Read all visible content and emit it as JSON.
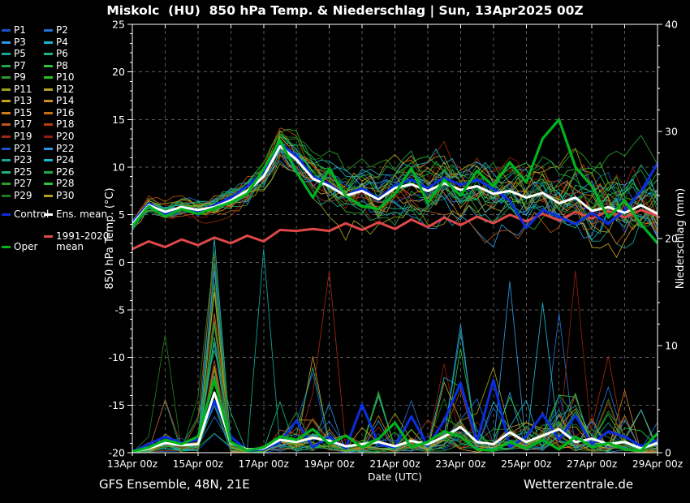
{
  "title": "Miskolc  (HU)  850 hPa Temp. & Niederschlag | Sun, 13Apr2025 00Z",
  "footer": {
    "left": "GFS Ensemble, 48N, 21E",
    "right": "Wetterzentrale.de"
  },
  "colors": {
    "background": "#000000",
    "grid": "#5a5a5a",
    "axis": "#ffffff"
  },
  "legend": {
    "members": [
      {
        "label": "P1",
        "color": "#1c50c8"
      },
      {
        "label": "P2",
        "color": "#2472d8"
      },
      {
        "label": "P3",
        "color": "#2e96e0"
      },
      {
        "label": "P4",
        "color": "#1cb4cc"
      },
      {
        "label": "P5",
        "color": "#14a898"
      },
      {
        "label": "P6",
        "color": "#1cb478"
      },
      {
        "label": "P7",
        "color": "#20a848"
      },
      {
        "label": "P8",
        "color": "#2cc23c"
      },
      {
        "label": "P9",
        "color": "#2a9e2a"
      },
      {
        "label": "P10",
        "color": "#22c822"
      },
      {
        "label": "P11",
        "color": "#a0a01e"
      },
      {
        "label": "P12",
        "color": "#b4a01e"
      },
      {
        "label": "P13",
        "color": "#c8a41e"
      },
      {
        "label": "P14",
        "color": "#cc9022"
      },
      {
        "label": "P15",
        "color": "#d07c1e"
      },
      {
        "label": "P16",
        "color": "#c86c14"
      },
      {
        "label": "P17",
        "color": "#bc5614"
      },
      {
        "label": "P18",
        "color": "#b04010"
      },
      {
        "label": "P19",
        "color": "#a02810"
      },
      {
        "label": "P20",
        "color": "#8f1e0c"
      },
      {
        "label": "P21",
        "color": "#1c50c8"
      },
      {
        "label": "P22",
        "color": "#2e96e0"
      },
      {
        "label": "P23",
        "color": "#14a898"
      },
      {
        "label": "P24",
        "color": "#1cb4cc"
      },
      {
        "label": "P25",
        "color": "#1cb478"
      },
      {
        "label": "P26",
        "color": "#20a848"
      },
      {
        "label": "P27",
        "color": "#2a9e2a"
      },
      {
        "label": "P28",
        "color": "#2cc23c"
      },
      {
        "label": "P29",
        "color": "#1e7d1e"
      },
      {
        "label": "P30",
        "color": "#b4a01e"
      }
    ],
    "control": {
      "label": "Control",
      "color": "#0a2ee0"
    },
    "ens_mean": {
      "label": "Ens. mean",
      "color": "#ffffff"
    },
    "clim_mean": {
      "label": "1991-2020\nmean",
      "color": "#e04848"
    },
    "oper": {
      "label": "Oper",
      "color": "#00b41e"
    }
  },
  "chart_data": {
    "type": "line",
    "title": "Miskolc  (HU)  850 hPa Temp. & Niederschlag | Sun, 13Apr2025 00Z",
    "xlabel": "Date (UTC)",
    "ylabel_left": "850 hPa Temp. (°C)",
    "ylabel_right": "Niederschlag (mm)",
    "x_tick_labels": [
      "13Apr 00z",
      "15Apr 00z",
      "17Apr 00z",
      "19Apr 00z",
      "21Apr 00z",
      "23Apr 00z",
      "25Apr 00z",
      "27Apr 00z",
      "29Apr 00z"
    ],
    "y_left_ticks": [
      25,
      20,
      15,
      10,
      5,
      0,
      -5,
      -10,
      -15,
      -20
    ],
    "y_right_ticks": [
      40,
      30,
      20,
      10,
      0
    ],
    "ylim_left": [
      -20,
      25
    ],
    "ylim_right": [
      0,
      40
    ],
    "grid": true,
    "legend_position": "left",
    "time_step_hours": 12,
    "n_points": 33,
    "series": {
      "ens_mean_temp": [
        4.0,
        6.0,
        5.3,
        5.8,
        5.5,
        5.8,
        6.5,
        7.5,
        9.0,
        12.2,
        10.8,
        8.8,
        8.0,
        7.0,
        7.5,
        6.6,
        7.8,
        8.2,
        7.5,
        8.3,
        7.6,
        8.0,
        7.2,
        7.5,
        6.8,
        7.3,
        6.2,
        6.8,
        5.4,
        5.8,
        5.2,
        6.0,
        5.1
      ],
      "control_temp": [
        4.2,
        6.2,
        5.1,
        5.7,
        5.3,
        6.0,
        6.8,
        8.0,
        9.5,
        12.5,
        11.2,
        9.0,
        8.2,
        7.0,
        7.8,
        6.7,
        8.1,
        8.7,
        7.8,
        8.9,
        8.1,
        8.7,
        7.7,
        6.5,
        3.6,
        5.5,
        4.8,
        4.0,
        5.2,
        4.0,
        5.5,
        7.5,
        10.4
      ],
      "oper_temp": [
        3.8,
        5.9,
        4.8,
        5.6,
        5.1,
        5.7,
        6.3,
        7.2,
        9.8,
        12.8,
        9.5,
        6.8,
        9.8,
        7.0,
        5.9,
        5.6,
        7.2,
        9.9,
        6.2,
        8.7,
        7.0,
        9.6,
        8.0,
        10.5,
        8.4,
        13.0,
        15.0,
        10.0,
        8.0,
        4.7,
        6.5,
        4.0,
        2.0
      ],
      "clim_mean_temp": [
        1.4,
        2.2,
        1.6,
        2.4,
        1.8,
        2.6,
        2.0,
        2.8,
        2.2,
        3.4,
        3.3,
        3.5,
        3.3,
        4.1,
        3.4,
        4.2,
        3.5,
        4.5,
        3.7,
        4.7,
        3.9,
        4.8,
        4.1,
        5.0,
        4.3,
        5.1,
        4.4,
        5.3,
        4.6,
        5.4,
        4.7,
        5.5,
        4.9
      ],
      "ens_mean_precip": [
        0.1,
        0.4,
        0.9,
        0.7,
        0.8,
        5.6,
        0.9,
        0.3,
        0.4,
        1.2,
        1.0,
        1.4,
        1.1,
        0.6,
        0.8,
        1.0,
        0.6,
        1.1,
        0.8,
        1.5,
        2.4,
        1.0,
        0.8,
        1.9,
        1.0,
        1.6,
        2.2,
        1.0,
        1.3,
        0.8,
        1.0,
        0.4,
        0.9
      ],
      "control_precip": [
        0.1,
        0.8,
        1.5,
        0.9,
        1.2,
        4.8,
        1.5,
        0.2,
        0.3,
        1.0,
        3.0,
        0.5,
        1.5,
        0.4,
        4.5,
        0.8,
        0.5,
        3.4,
        0.6,
        3.0,
        6.5,
        1.0,
        6.8,
        0.5,
        1.5,
        3.6,
        1.2,
        3.5,
        0.8,
        2.0,
        1.5,
        0.6,
        1.2
      ],
      "oper_precip": [
        0.1,
        0.5,
        1.2,
        0.8,
        1.5,
        6.8,
        1.0,
        0.2,
        0.5,
        1.5,
        1.2,
        2.2,
        0.8,
        1.6,
        0.5,
        1.3,
        2.8,
        0.5,
        1.0,
        2.0,
        1.5,
        0.3,
        0.2,
        1.0,
        0.4,
        1.2,
        0.3,
        1.5,
        0.5,
        0.9,
        0.3,
        0.2,
        1.8
      ]
    },
    "member_synthesis": {
      "temp_spread": [
        0.8,
        0.9,
        1.0,
        1.1,
        1.2,
        1.3,
        1.5,
        1.7,
        1.9,
        2.1,
        2.4,
        2.6,
        2.8,
        3.0,
        3.1,
        3.2,
        3.3,
        3.4,
        3.5,
        3.6,
        3.7,
        3.8,
        3.9,
        4.0,
        4.1,
        4.2,
        4.3,
        4.4,
        4.5,
        4.6,
        4.7,
        4.8,
        5.0
      ],
      "precip_cluster": [
        0.3,
        0.5,
        2.5,
        1.0,
        2.0,
        8.0,
        2.0,
        0.3,
        0.5,
        2.0,
        2.5,
        3.0,
        2.0,
        1.5,
        2.0,
        2.5,
        1.5,
        3.0,
        2.0,
        3.5,
        4.0,
        2.5,
        3.5,
        2.0,
        2.5,
        3.5,
        3.0,
        3.5,
        2.5,
        3.0,
        2.5,
        1.5,
        2.0
      ],
      "precip_spikes": [
        {
          "member": 29,
          "i": 2,
          "mm": 11
        },
        {
          "member": 4,
          "i": 5,
          "mm": 20
        },
        {
          "member": 13,
          "i": 5,
          "mm": 15
        },
        {
          "member": 15,
          "i": 5,
          "mm": 13
        },
        {
          "member": 22,
          "i": 5,
          "mm": 17
        },
        {
          "member": 5,
          "i": 8,
          "mm": 19
        },
        {
          "member": 19,
          "i": 12,
          "mm": 17
        },
        {
          "member": 14,
          "i": 11,
          "mm": 9
        },
        {
          "member": 22,
          "i": 20,
          "mm": 12
        },
        {
          "member": 3,
          "i": 23,
          "mm": 16
        },
        {
          "member": 4,
          "i": 25,
          "mm": 14
        },
        {
          "member": 2,
          "i": 26,
          "mm": 13
        },
        {
          "member": 20,
          "i": 27,
          "mm": 17
        },
        {
          "member": 19,
          "i": 29,
          "mm": 9
        },
        {
          "member": 12,
          "i": 31,
          "mm": 4
        }
      ]
    }
  }
}
